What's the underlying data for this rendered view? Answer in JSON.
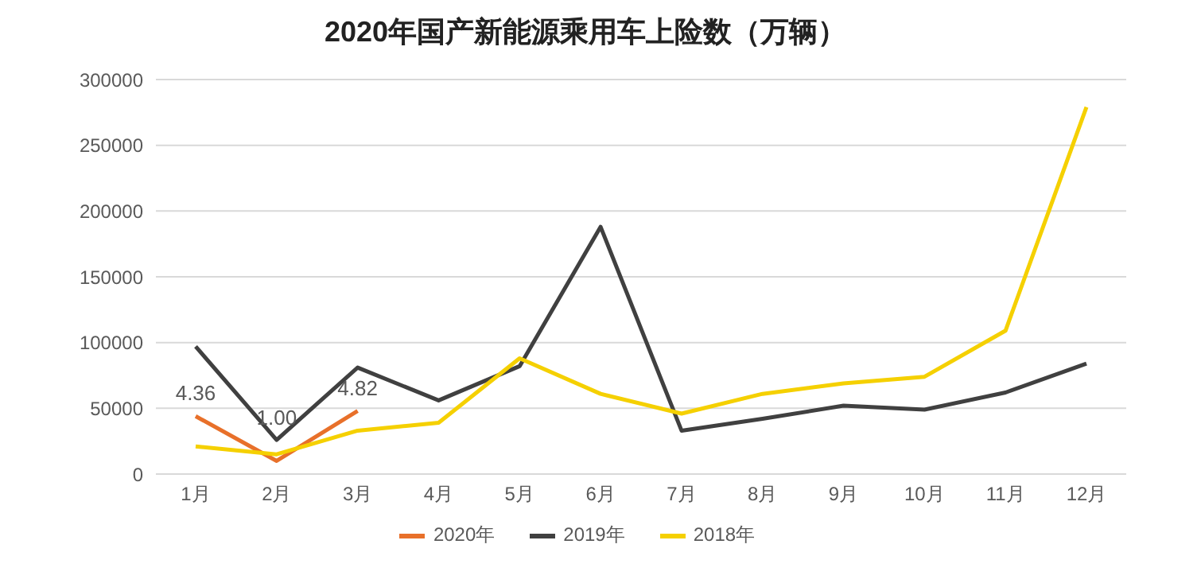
{
  "chart_data": {
    "type": "line",
    "title": "2020年国产新能源乘用车上险数（万辆）",
    "categories": [
      "1月",
      "2月",
      "3月",
      "4月",
      "5月",
      "6月",
      "7月",
      "8月",
      "9月",
      "10月",
      "11月",
      "12月"
    ],
    "series": [
      {
        "name": "2020年",
        "color": "#e8702a",
        "values": [
          44000,
          10000,
          48000,
          null,
          null,
          null,
          null,
          null,
          null,
          null,
          null,
          null
        ]
      },
      {
        "name": "2019年",
        "color": "#404040",
        "values": [
          97000,
          26000,
          81000,
          56000,
          82000,
          188000,
          33000,
          42000,
          52000,
          49000,
          62000,
          84000
        ]
      },
      {
        "name": "2018年",
        "color": "#f5d000",
        "values": [
          21000,
          15000,
          33000,
          39000,
          88000,
          61000,
          46000,
          61000,
          69000,
          74000,
          109000,
          279000
        ]
      }
    ],
    "annotations": [
      {
        "text": "4.36",
        "x": "1月",
        "y": 44000
      },
      {
        "text": "1.00",
        "x": "2月",
        "y": 10000
      },
      {
        "text": "4.82",
        "x": "3月",
        "y": 48000
      }
    ],
    "ylim": [
      0,
      300000
    ],
    "yticks": [
      0,
      50000,
      100000,
      150000,
      200000,
      250000,
      300000
    ],
    "grid": "y",
    "legend": "bottom",
    "marker": "none",
    "line_style": "solid"
  }
}
